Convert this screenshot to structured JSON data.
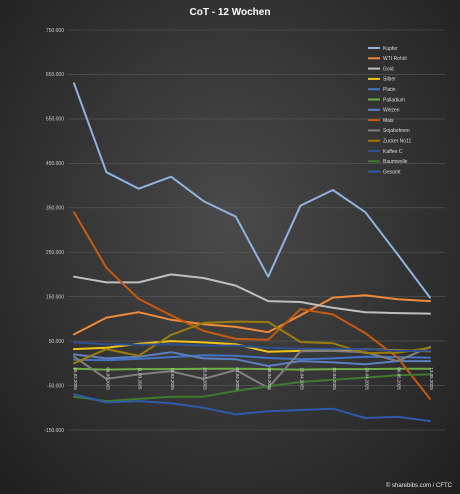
{
  "chart_data": {
    "type": "line",
    "title": "CoT - 12 Wochen",
    "xlabel": "",
    "ylabel": "",
    "x": [
      "25.02.2025",
      "04.03.2025",
      "11.03.2025",
      "18.03.2025",
      "25.03.2025",
      "01.04.2025",
      "08.04.2025",
      "15.04.2025",
      "22.04.2025",
      "29.04.2025",
      "06.05.2025",
      "13.05.2025"
    ],
    "ylim": [
      -150000,
      750000
    ],
    "yticks": [
      750000,
      650000,
      550000,
      450000,
      350000,
      250000,
      150000,
      50000,
      -50000,
      -150000
    ],
    "ytick_labels": [
      "750.000",
      "650.000",
      "550.000",
      "450.000",
      "350.000",
      "250.000",
      "150.000",
      "50.000",
      "-50.000",
      "-150.000"
    ],
    "grid": true,
    "legend_position": "top-right",
    "series": [
      {
        "name": "Kupfer",
        "color": "#8fb3e0",
        "values": [
          630000,
          430000,
          393000,
          420000,
          365000,
          330000,
          195000,
          355000,
          390000,
          340000,
          245000,
          148000
        ]
      },
      {
        "name": "WTI Rohöl",
        "color": "#f08a3a",
        "values": [
          65000,
          103000,
          115000,
          98000,
          88000,
          82000,
          70000,
          108000,
          148000,
          153000,
          144000,
          140000
        ]
      },
      {
        "name": "Gold",
        "color": "#bfbfbf",
        "values": [
          195000,
          182000,
          182000,
          200000,
          192000,
          175000,
          140000,
          138000,
          125000,
          115000,
          113000,
          112000
        ]
      },
      {
        "name": "Silber",
        "color": "#f0c419",
        "values": [
          32000,
          35000,
          44000,
          50000,
          47000,
          43000,
          26000,
          28000,
          30000,
          32000,
          29000,
          27000
        ]
      },
      {
        "name": "Platin",
        "color": "#4472c4",
        "values": [
          8000,
          7000,
          10000,
          14000,
          18000,
          17000,
          12000,
          9000,
          11000,
          15000,
          14000,
          13000
        ]
      },
      {
        "name": "Palladium",
        "color": "#70ad47",
        "values": [
          -12000,
          -14000,
          -13000,
          -13000,
          -12000,
          -12000,
          -13000,
          -14000,
          -13000,
          -13000,
          -12000,
          -12000
        ]
      },
      {
        "name": "Weizen",
        "color": "#5b7fbf",
        "values": [
          20000,
          11000,
          15000,
          25000,
          11000,
          9000,
          -6000,
          5000,
          2000,
          -2000,
          5000,
          5000
        ]
      },
      {
        "name": "Mais",
        "color": "#c55a11",
        "values": [
          340000,
          215000,
          145000,
          108000,
          73000,
          55000,
          53000,
          122000,
          110000,
          68000,
          13000,
          -80000
        ]
      },
      {
        "name": "Sojabohnen",
        "color": "#7f7f7f",
        "values": [
          15000,
          -35000,
          -25000,
          -18000,
          -35000,
          -15000,
          -55000,
          27000,
          28000,
          25000,
          5000,
          37000
        ]
      },
      {
        "name": "Zucker No11",
        "color": "#9c7c0a",
        "values": [
          0,
          32000,
          17000,
          64000,
          91000,
          94000,
          93000,
          48000,
          45000,
          23000,
          24000,
          35000
        ]
      },
      {
        "name": "Kaffee C",
        "color": "#2f4f8f",
        "values": [
          47000,
          43000,
          42000,
          43000,
          40000,
          40000,
          35000,
          33000,
          33000,
          32000,
          28000,
          28000
        ]
      },
      {
        "name": "Baumwolle",
        "color": "#3f7a2f",
        "values": [
          -75000,
          -85000,
          -80000,
          -75000,
          -75000,
          -62000,
          -52000,
          -42000,
          -37000,
          -32000,
          -27000,
          -25000
        ]
      },
      {
        "name": "Gesamt",
        "color": "#2e5aa8",
        "values": [
          -70000,
          -88000,
          -85000,
          -90000,
          -100000,
          -115000,
          -108000,
          -105000,
          -102000,
          -123000,
          -120000,
          -130000
        ]
      }
    ],
    "credit": "© sharebibs.com / CFTC"
  }
}
